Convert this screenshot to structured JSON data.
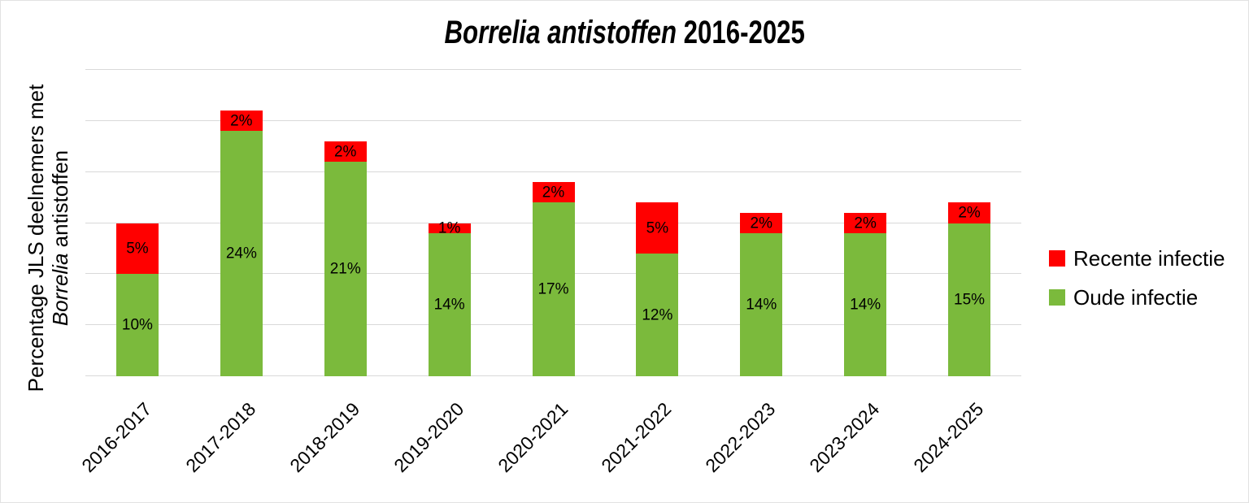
{
  "chart_title": {
    "italic_part": "Borrelia antistoffen",
    "regular_part": " 2016-2025"
  },
  "y_axis_title": {
    "line1": "Percentage JLS deelnemers met",
    "line2_italic": "Borrelia",
    "line2_regular": " antistoffen"
  },
  "chart_data": {
    "type": "bar",
    "stacked": true,
    "title": "Borrelia antistoffen 2016-2025",
    "ylabel": "Percentage JLS deelnemers met Borrelia antistoffen",
    "xlabel": "",
    "categories": [
      "2016-2017",
      "2017-2018",
      "2018-2019",
      "2019-2020",
      "2020-2021",
      "2021-2022",
      "2022-2023",
      "2023-2024",
      "2024-2025"
    ],
    "series": [
      {
        "name": "Oude infectie",
        "color": "#7BBA3C",
        "values": [
          10,
          24,
          21,
          14,
          17,
          12,
          14,
          14,
          15
        ]
      },
      {
        "name": "Recente infectie",
        "color": "#FF0000",
        "values": [
          5,
          2,
          2,
          1,
          2,
          5,
          2,
          2,
          2
        ]
      }
    ],
    "legend": [
      {
        "label": "Recente infectie",
        "color": "#FF0000"
      },
      {
        "label": "Oude infectie",
        "color": "#7BBA3C"
      }
    ],
    "ylim": [
      0,
      30
    ],
    "gridline_step": 5,
    "grid": true,
    "gridline_color": "#D9D9D9",
    "legend_position": "right",
    "data_label_format": "{v}%",
    "data_label_color": "#000000"
  }
}
